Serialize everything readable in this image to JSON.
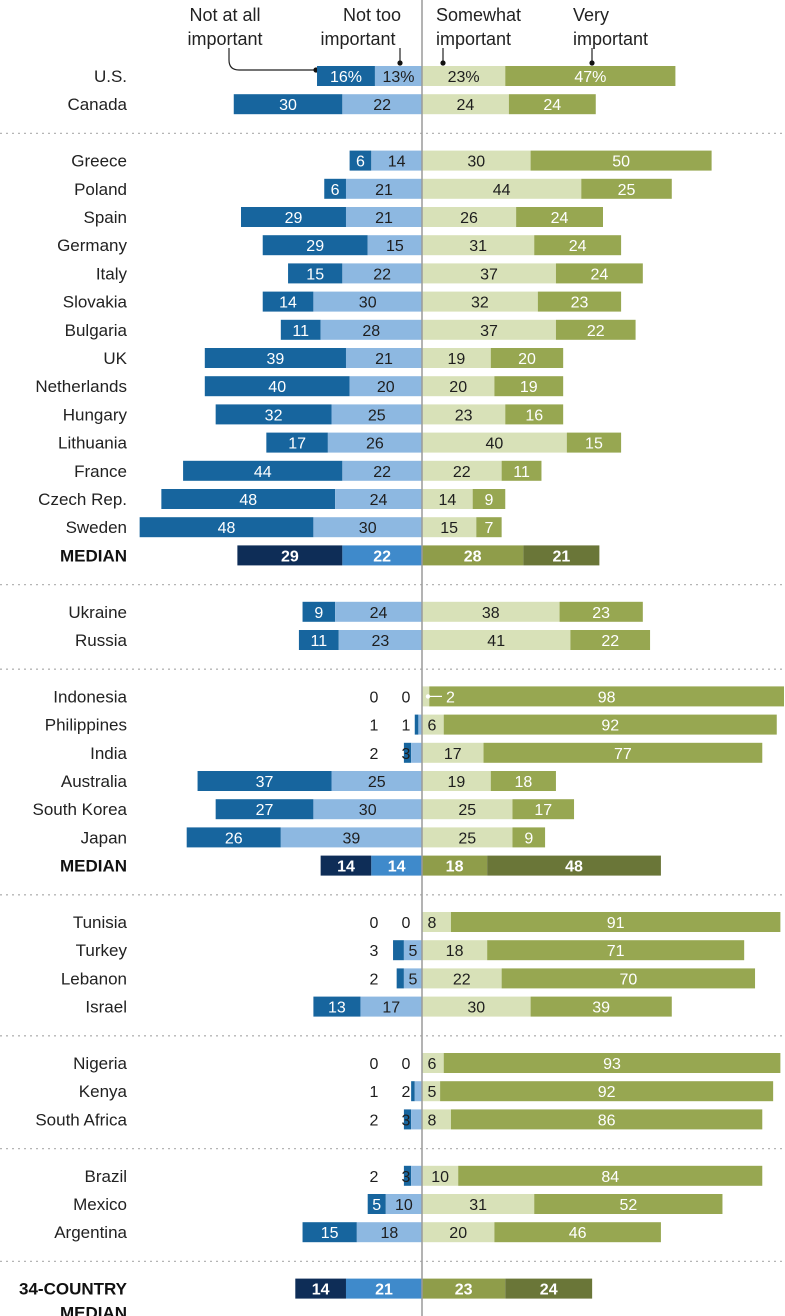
{
  "chart_data": {
    "type": "bar",
    "stacked": "diverging",
    "legend": [
      "Not at all important",
      "Not too important",
      "Somewhat important",
      "Very important"
    ],
    "legend_labels": [
      {
        "line1": "Not at all",
        "line2": "important"
      },
      {
        "line1": "Not too",
        "line2": "important"
      },
      {
        "line1": "Somewhat",
        "line2": "important"
      },
      {
        "line1": "Very",
        "line2": "important"
      }
    ],
    "colors": {
      "not_at_all": "#17659E",
      "not_too": "#8DB8E1",
      "somewhat": "#D8E1B8",
      "very": "#97A751",
      "median_not_at_all": "#0E2D57",
      "median_not_too": "#3F8ACB",
      "median_somewhat": "#8F9D4A",
      "median_very": "#6A7638"
    },
    "groups": [
      {
        "rows": [
          {
            "country": "U.S.",
            "values": [
              16,
              13,
              23,
              47
            ],
            "labels": [
              "16%",
              "13%",
              "23%",
              "47%"
            ]
          },
          {
            "country": "Canada",
            "values": [
              30,
              22,
              24,
              24
            ]
          }
        ]
      },
      {
        "rows": [
          {
            "country": "Greece",
            "values": [
              6,
              14,
              30,
              50
            ]
          },
          {
            "country": "Poland",
            "values": [
              6,
              21,
              44,
              25
            ]
          },
          {
            "country": "Spain",
            "values": [
              29,
              21,
              26,
              24
            ]
          },
          {
            "country": "Germany",
            "values": [
              29,
              15,
              31,
              24
            ]
          },
          {
            "country": "Italy",
            "values": [
              15,
              22,
              37,
              24
            ]
          },
          {
            "country": "Slovakia",
            "values": [
              14,
              30,
              32,
              23
            ]
          },
          {
            "country": "Bulgaria",
            "values": [
              11,
              28,
              37,
              22
            ]
          },
          {
            "country": "UK",
            "values": [
              39,
              21,
              19,
              20
            ]
          },
          {
            "country": "Netherlands",
            "values": [
              40,
              20,
              20,
              19
            ]
          },
          {
            "country": "Hungary",
            "values": [
              32,
              25,
              23,
              16
            ]
          },
          {
            "country": "Lithuania",
            "values": [
              17,
              26,
              40,
              15
            ]
          },
          {
            "country": "France",
            "values": [
              44,
              22,
              22,
              11
            ]
          },
          {
            "country": "Czech Rep.",
            "values": [
              48,
              24,
              14,
              9
            ]
          },
          {
            "country": "Sweden",
            "values": [
              48,
              30,
              15,
              7
            ]
          },
          {
            "country": "MEDIAN",
            "values": [
              29,
              22,
              28,
              21
            ],
            "median": true
          }
        ]
      },
      {
        "rows": [
          {
            "country": "Ukraine",
            "values": [
              9,
              24,
              38,
              23
            ]
          },
          {
            "country": "Russia",
            "values": [
              11,
              23,
              41,
              22
            ]
          }
        ]
      },
      {
        "rows": [
          {
            "country": "Indonesia",
            "values": [
              0,
              0,
              2,
              98
            ]
          },
          {
            "country": "Philippines",
            "values": [
              1,
              1,
              6,
              92
            ]
          },
          {
            "country": "India",
            "values": [
              2,
              3,
              17,
              77
            ]
          },
          {
            "country": "Australia",
            "values": [
              37,
              25,
              19,
              18
            ]
          },
          {
            "country": "South Korea",
            "values": [
              27,
              30,
              25,
              17
            ]
          },
          {
            "country": "Japan",
            "values": [
              26,
              39,
              25,
              9
            ]
          },
          {
            "country": "MEDIAN",
            "values": [
              14,
              14,
              18,
              48
            ],
            "median": true
          }
        ]
      },
      {
        "rows": [
          {
            "country": "Tunisia",
            "values": [
              0,
              0,
              8,
              91
            ]
          },
          {
            "country": "Turkey",
            "values": [
              3,
              5,
              18,
              71
            ]
          },
          {
            "country": "Lebanon",
            "values": [
              2,
              5,
              22,
              70
            ]
          },
          {
            "country": "Israel",
            "values": [
              13,
              17,
              30,
              39
            ]
          }
        ]
      },
      {
        "rows": [
          {
            "country": "Nigeria",
            "values": [
              0,
              0,
              6,
              93
            ]
          },
          {
            "country": "Kenya",
            "values": [
              1,
              2,
              5,
              92
            ]
          },
          {
            "country": "South Africa",
            "values": [
              2,
              3,
              8,
              86
            ]
          }
        ]
      },
      {
        "rows": [
          {
            "country": "Brazil",
            "values": [
              2,
              3,
              10,
              84
            ]
          },
          {
            "country": "Mexico",
            "values": [
              5,
              10,
              31,
              52
            ]
          },
          {
            "country": "Argentina",
            "values": [
              15,
              18,
              20,
              46
            ]
          }
        ]
      },
      {
        "rows": [
          {
            "country": "34-COUNTRY",
            "country_line2": "MEDIAN",
            "values": [
              14,
              21,
              23,
              24
            ],
            "median": true
          }
        ]
      }
    ]
  }
}
